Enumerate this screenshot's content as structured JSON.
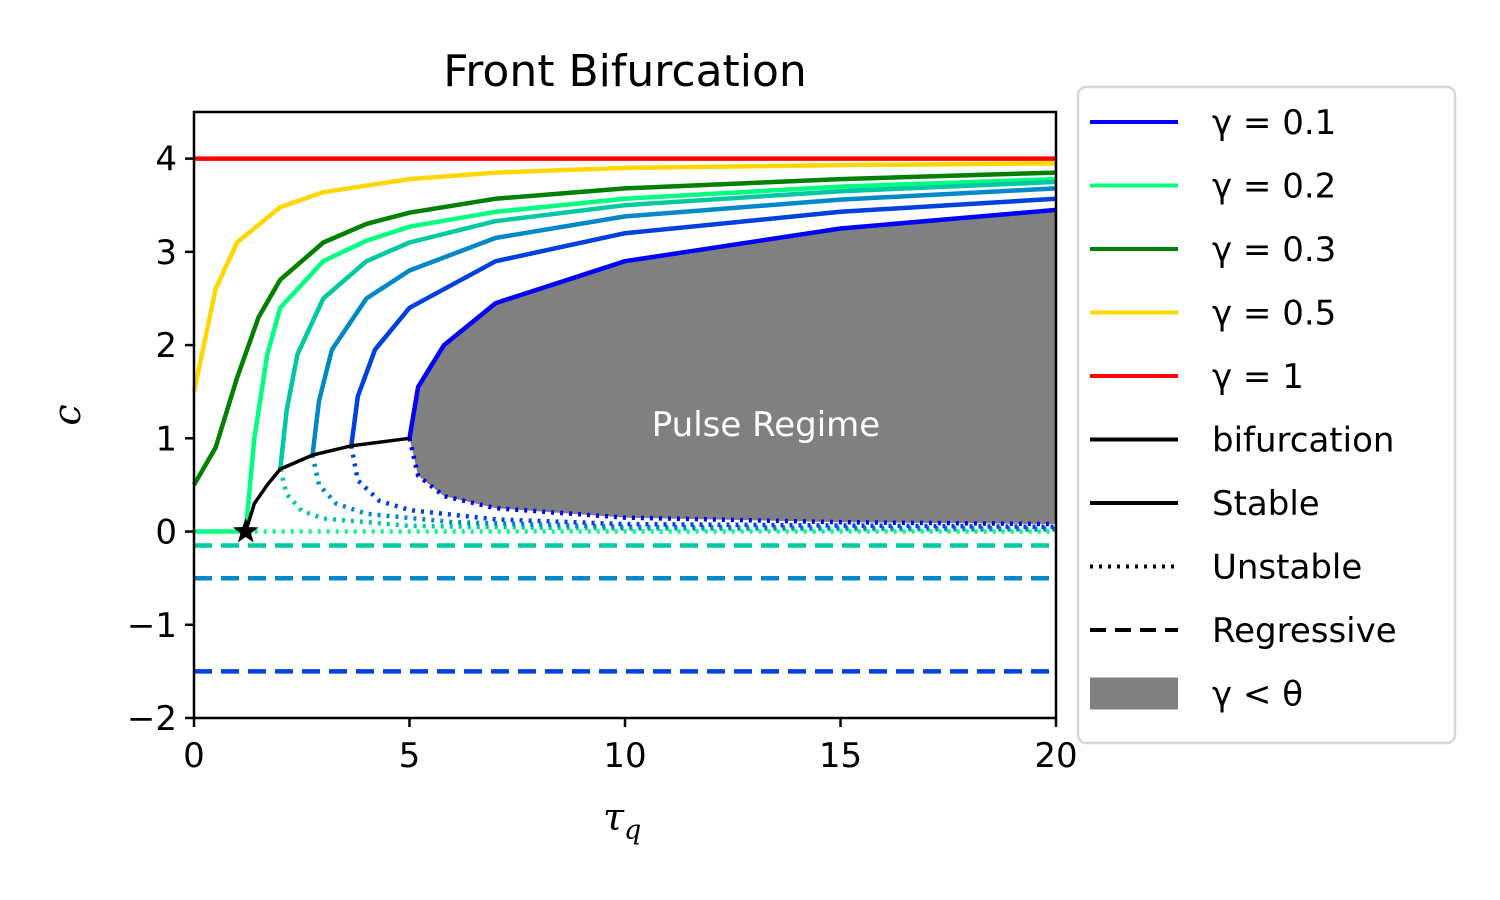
{
  "chart_data": {
    "type": "line",
    "title": "Front Bifurcation",
    "xlabel": "τ",
    "xlabel_sub": "q",
    "ylabel": "c",
    "xlim": [
      0,
      20
    ],
    "ylim": [
      -2,
      4.5
    ],
    "xticks": [
      0,
      5,
      10,
      15,
      20
    ],
    "yticks": [
      -2,
      -1,
      0,
      1,
      2,
      3,
      4
    ],
    "xtick_labels": [
      "0",
      "5",
      "10",
      "15",
      "20"
    ],
    "ytick_labels": [
      "−2",
      "−1",
      "0",
      "1",
      "2",
      "3",
      "4"
    ],
    "grid": false,
    "legend_position": "outside-right",
    "region_label": "Pulse Regime",
    "region": {
      "fill": "#808080",
      "apex": [
        5,
        1
      ],
      "upper_end": [
        20,
        3.45
      ],
      "lower_end": [
        20,
        0.08
      ]
    },
    "legend": [
      {
        "label": "γ = 0.1",
        "style": "solid",
        "color": "#0000ff"
      },
      {
        "label": "γ = 0.2",
        "style": "solid",
        "color": "#00ff80"
      },
      {
        "label": "γ = 0.3",
        "style": "solid",
        "color": "#008000"
      },
      {
        "label": "γ = 0.5",
        "style": "solid",
        "color": "#ffd700"
      },
      {
        "label": "γ = 1",
        "style": "solid",
        "color": "#ff0000"
      },
      {
        "label": "bifurcation",
        "style": "solid",
        "color": "#000000"
      },
      {
        "label": "Stable",
        "style": "solid",
        "color": "#000000"
      },
      {
        "label": "Unstable",
        "style": "dotted",
        "color": "#000000"
      },
      {
        "label": "Regressive",
        "style": "dashed",
        "color": "#000000"
      },
      {
        "label": "γ < θ",
        "style": "patch",
        "color": "#808080"
      }
    ],
    "series": [
      {
        "color": "#ff0000",
        "style": "solid",
        "points": [
          [
            0,
            4.0
          ],
          [
            20,
            4.0
          ]
        ]
      },
      {
        "color": "#ffd700",
        "style": "solid",
        "points": [
          [
            0,
            1.5
          ],
          [
            0.5,
            2.6
          ],
          [
            1,
            3.1
          ],
          [
            2,
            3.48
          ],
          [
            3,
            3.64
          ],
          [
            5,
            3.78
          ],
          [
            7,
            3.85
          ],
          [
            10,
            3.9
          ],
          [
            15,
            3.93
          ],
          [
            20,
            3.95
          ]
        ]
      },
      {
        "color": "#008000",
        "style": "solid",
        "points": [
          [
            0,
            0.5
          ],
          [
            0.5,
            0.9
          ],
          [
            1,
            1.65
          ],
          [
            1.5,
            2.3
          ],
          [
            2,
            2.7
          ],
          [
            3,
            3.1
          ],
          [
            4,
            3.3
          ],
          [
            5,
            3.42
          ],
          [
            7,
            3.57
          ],
          [
            10,
            3.68
          ],
          [
            15,
            3.78
          ],
          [
            20,
            3.85
          ]
        ]
      },
      {
        "color": "#00ff80",
        "style": "solid",
        "points": [
          [
            1.2,
            0.0
          ],
          [
            1.4,
            1.0
          ],
          [
            1.7,
            1.9
          ],
          [
            2,
            2.4
          ],
          [
            3,
            2.9
          ],
          [
            4,
            3.12
          ],
          [
            5,
            3.27
          ],
          [
            7,
            3.43
          ],
          [
            10,
            3.57
          ],
          [
            15,
            3.7
          ],
          [
            20,
            3.78
          ]
        ]
      },
      {
        "color": "#00ff80",
        "style": "dotted",
        "points": [
          [
            1.2,
            0.0
          ],
          [
            20,
            0.0
          ]
        ]
      },
      {
        "color": "#00ff80",
        "style": "solid",
        "points": [
          [
            0,
            0.0
          ],
          [
            1.2,
            0.0
          ]
        ]
      },
      {
        "color": "#00c8a0",
        "style": "solid",
        "points": [
          [
            2.0,
            0.67
          ],
          [
            2.15,
            1.3
          ],
          [
            2.4,
            1.9
          ],
          [
            3,
            2.5
          ],
          [
            4,
            2.9
          ],
          [
            5,
            3.1
          ],
          [
            7,
            3.33
          ],
          [
            10,
            3.5
          ],
          [
            15,
            3.65
          ],
          [
            20,
            3.75
          ]
        ]
      },
      {
        "color": "#00c8a0",
        "style": "dotted",
        "points": [
          [
            2.0,
            0.67
          ],
          [
            2.15,
            0.4
          ],
          [
            2.5,
            0.22
          ],
          [
            3,
            0.14
          ],
          [
            5,
            0.06
          ],
          [
            10,
            0.03
          ],
          [
            20,
            0.02
          ]
        ]
      },
      {
        "color": "#00c8a0",
        "style": "dashed",
        "points": [
          [
            0,
            -0.15
          ],
          [
            20,
            -0.15
          ]
        ]
      },
      {
        "color": "#0088c8",
        "style": "solid",
        "points": [
          [
            2.75,
            0.82
          ],
          [
            2.9,
            1.4
          ],
          [
            3.2,
            1.95
          ],
          [
            4,
            2.5
          ],
          [
            5,
            2.8
          ],
          [
            7,
            3.15
          ],
          [
            10,
            3.38
          ],
          [
            15,
            3.56
          ],
          [
            20,
            3.68
          ]
        ]
      },
      {
        "color": "#0088c8",
        "style": "dotted",
        "points": [
          [
            2.75,
            0.82
          ],
          [
            2.9,
            0.5
          ],
          [
            3.3,
            0.3
          ],
          [
            4,
            0.19
          ],
          [
            6,
            0.1
          ],
          [
            10,
            0.05
          ],
          [
            20,
            0.03
          ]
        ]
      },
      {
        "color": "#0088c8",
        "style": "dashed",
        "points": [
          [
            0,
            -0.5
          ],
          [
            20,
            -0.5
          ]
        ]
      },
      {
        "color": "#0040e0",
        "style": "solid",
        "points": [
          [
            3.65,
            0.92
          ],
          [
            3.8,
            1.45
          ],
          [
            4.2,
            1.95
          ],
          [
            5,
            2.4
          ],
          [
            7,
            2.9
          ],
          [
            10,
            3.2
          ],
          [
            15,
            3.43
          ],
          [
            20,
            3.57
          ]
        ]
      },
      {
        "color": "#0040e0",
        "style": "dotted",
        "points": [
          [
            3.65,
            0.92
          ],
          [
            3.8,
            0.55
          ],
          [
            4.3,
            0.33
          ],
          [
            5,
            0.23
          ],
          [
            7,
            0.13
          ],
          [
            10,
            0.08
          ],
          [
            20,
            0.05
          ]
        ]
      },
      {
        "color": "#0040e0",
        "style": "dashed",
        "points": [
          [
            0,
            -1.5
          ],
          [
            20,
            -1.5
          ]
        ]
      },
      {
        "color": "#0000ff",
        "style": "solid",
        "points": [
          [
            5.0,
            1.0
          ],
          [
            5.2,
            1.55
          ],
          [
            5.8,
            2.0
          ],
          [
            7,
            2.45
          ],
          [
            10,
            2.9
          ],
          [
            15,
            3.25
          ],
          [
            20,
            3.45
          ]
        ]
      },
      {
        "color": "#0000ff",
        "style": "dotted",
        "points": [
          [
            5.0,
            1.0
          ],
          [
            5.2,
            0.6
          ],
          [
            5.8,
            0.38
          ],
          [
            7,
            0.25
          ],
          [
            10,
            0.15
          ],
          [
            15,
            0.1
          ],
          [
            20,
            0.08
          ]
        ]
      },
      {
        "color": "#000000",
        "style": "solid",
        "points": [
          [
            1.2,
            0.0
          ],
          [
            1.4,
            0.3
          ],
          [
            1.7,
            0.5
          ],
          [
            2.0,
            0.67
          ],
          [
            2.75,
            0.82
          ],
          [
            3.65,
            0.92
          ],
          [
            5.0,
            1.0
          ]
        ]
      }
    ],
    "markers": [
      {
        "shape": "star",
        "x": 1.2,
        "y": 0.0,
        "color": "#000000"
      }
    ]
  }
}
